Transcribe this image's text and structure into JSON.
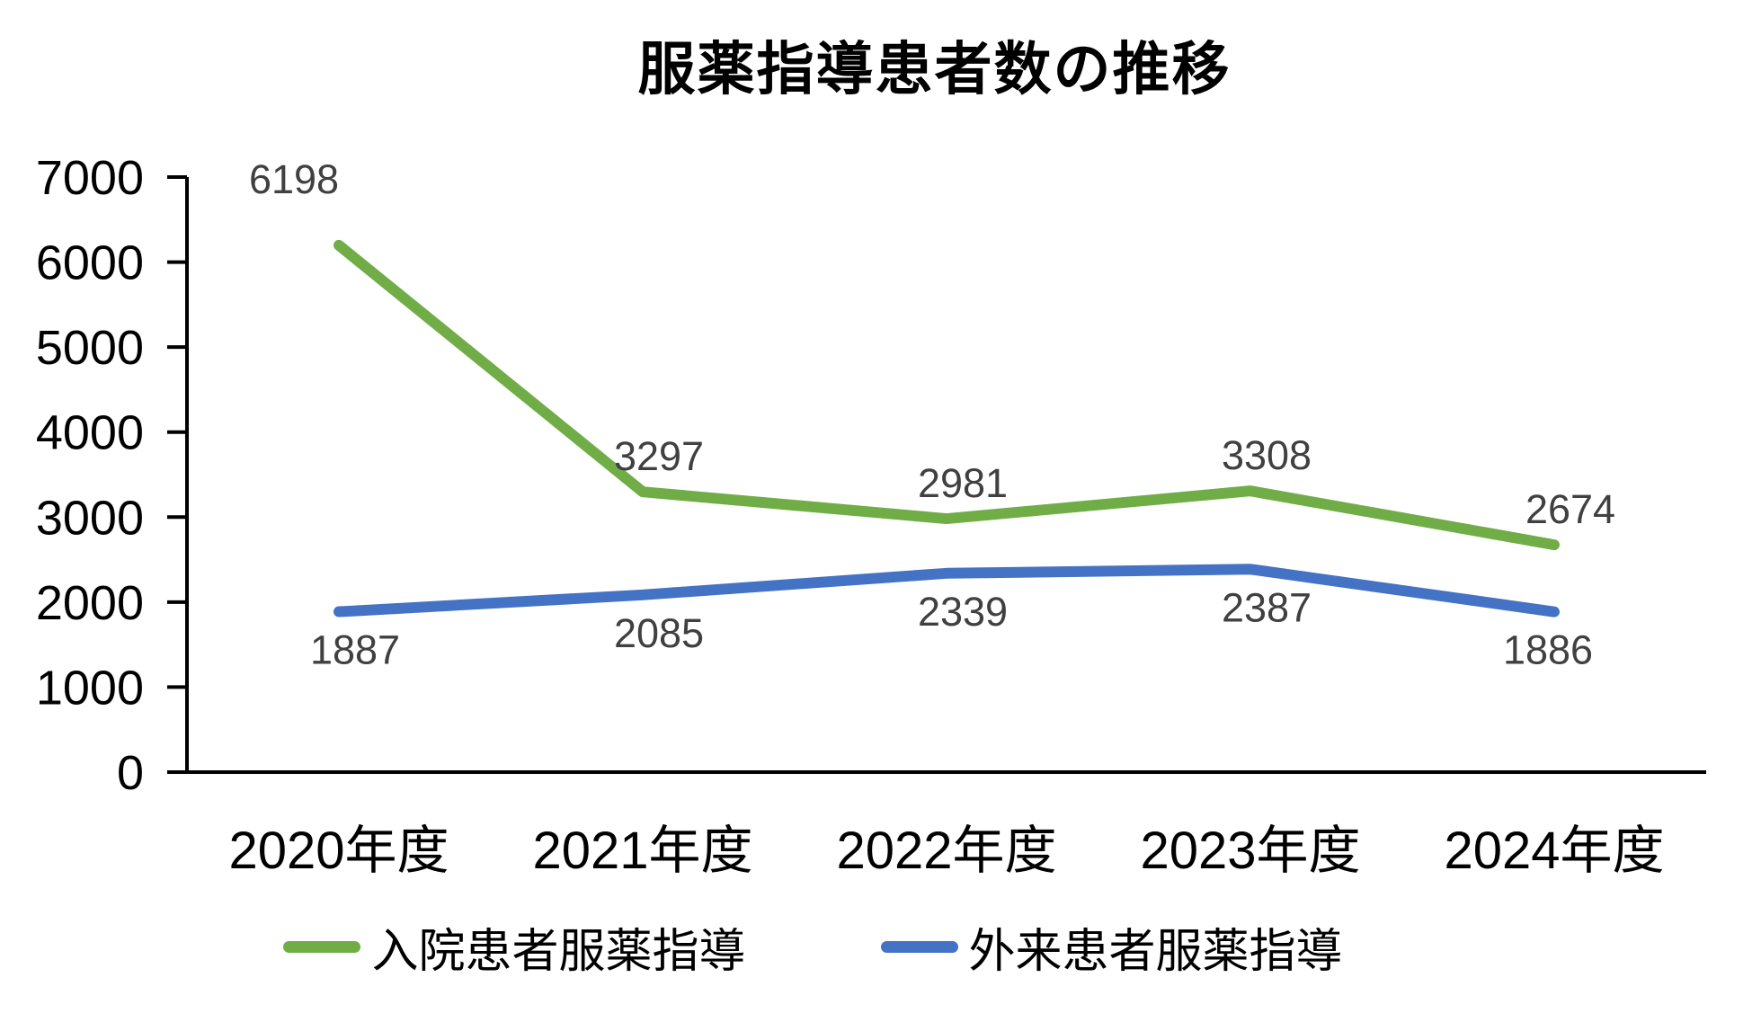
{
  "title": "服薬指導患者数の推移",
  "chart_data": {
    "type": "line",
    "title": "服薬指導患者数の推移",
    "categories": [
      "2020年度",
      "2021年度",
      "2022年度",
      "2023年度",
      "2024年度"
    ],
    "series": [
      {
        "name": "入院患者服薬指導",
        "color": "#70AD47",
        "values": [
          6198,
          3297,
          2981,
          3308,
          2674
        ],
        "label_position": "above"
      },
      {
        "name": "外来患者服薬指導",
        "color": "#4472C4",
        "values": [
          1887,
          2085,
          2339,
          2387,
          1886
        ],
        "label_position": "below"
      }
    ],
    "xlabel": "",
    "ylabel": "",
    "ylim": [
      0,
      7000
    ],
    "yticks": [
      0,
      1000,
      2000,
      3000,
      4000,
      5000,
      6000,
      7000
    ],
    "grid": false,
    "legend_position": "bottom",
    "data_label_color": "#404040",
    "axis_color": "#000000"
  }
}
